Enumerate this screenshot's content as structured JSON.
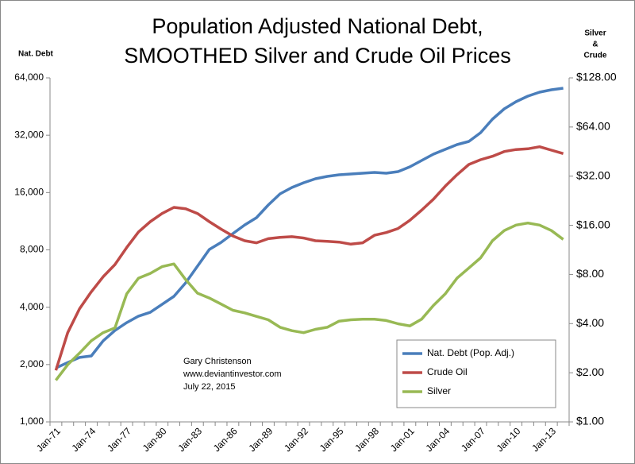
{
  "chart_data": {
    "type": "line",
    "title": [
      "Population Adjusted National Debt,",
      "SMOOTHED Silver and Crude Oil Prices"
    ],
    "ylabel": "Nat. Debt",
    "y2label": [
      "Silver",
      "&",
      "Crude"
    ],
    "annotation": [
      "Gary Christenson",
      "www.deviantinvestor.com",
      "July 22, 2015"
    ],
    "categories": [
      "Jan-71",
      null,
      null,
      "Jan-74",
      null,
      null,
      "Jan-77",
      null,
      null,
      "Jan-80",
      null,
      null,
      "Jan-83",
      null,
      null,
      "Jan-86",
      null,
      null,
      "Jan-89",
      null,
      null,
      "Jan-92",
      null,
      null,
      "Jan-95",
      null,
      null,
      "Jan-98",
      null,
      null,
      "Jan-01",
      null,
      null,
      "Jan-04",
      null,
      null,
      "Jan-07",
      null,
      null,
      "Jan-10",
      null,
      null,
      "Jan-13",
      null
    ],
    "series": [
      {
        "name": "Nat. Debt (Pop. Adj.)",
        "color": "#4a7ebb",
        "axis": "y",
        "values": [
          1920,
          2050,
          2180,
          2220,
          2660,
          3020,
          3320,
          3590,
          3760,
          4140,
          4560,
          5370,
          6570,
          8040,
          8760,
          9740,
          10820,
          11800,
          13760,
          15750,
          17000,
          18010,
          18900,
          19450,
          19820,
          20020,
          20210,
          20410,
          20210,
          20600,
          21830,
          23570,
          25450,
          26960,
          28560,
          29670,
          32990,
          38830,
          43990,
          47970,
          51300,
          53820,
          55410,
          56490
        ]
      },
      {
        "name": "Crude Oil",
        "color": "#be4b48",
        "axis": "y2",
        "values": [
          2.07,
          3.52,
          4.93,
          6.26,
          7.74,
          9.2,
          11.69,
          14.58,
          16.84,
          18.9,
          20.6,
          20.21,
          18.9,
          16.84,
          15.15,
          13.76,
          12.87,
          12.5,
          13.25,
          13.5,
          13.63,
          13.37,
          12.87,
          12.75,
          12.62,
          12.27,
          12.5,
          13.9,
          14.44,
          15.3,
          17.17,
          19.82,
          23.12,
          27.75,
          32.67,
          37.73,
          40.36,
          42.34,
          45.29,
          46.6,
          47.05,
          48.44,
          46.17,
          43.99
        ]
      },
      {
        "name": "Silver",
        "color": "#98b954",
        "axis": "y2",
        "values": [
          1.8,
          2.24,
          2.64,
          3.14,
          3.52,
          3.76,
          6.08,
          7.59,
          8.12,
          8.93,
          9.28,
          7.44,
          6.14,
          5.74,
          5.27,
          4.83,
          4.65,
          4.43,
          4.22,
          3.8,
          3.62,
          3.52,
          3.69,
          3.8,
          4.14,
          4.22,
          4.26,
          4.26,
          4.18,
          3.99,
          3.87,
          4.26,
          5.17,
          6.08,
          7.59,
          8.76,
          10.12,
          12.87,
          14.86,
          16.05,
          16.52,
          16.05,
          14.86,
          13.12
        ]
      }
    ],
    "ylim": [
      1000,
      64000
    ],
    "yticks": [
      {
        "value": 1000,
        "label": "1,000"
      },
      {
        "value": 2000,
        "label": "2,000"
      },
      {
        "value": 4000,
        "label": "4,000"
      },
      {
        "value": 8000,
        "label": "8,000"
      },
      {
        "value": 16000,
        "label": "16,000"
      },
      {
        "value": 32000,
        "label": "32,000"
      },
      {
        "value": 64000,
        "label": "64,000"
      }
    ],
    "y2lim": [
      1,
      128
    ],
    "y2ticks": [
      {
        "value": 1,
        "label": "$1.00"
      },
      {
        "value": 2,
        "label": "$2.00"
      },
      {
        "value": 4,
        "label": "$4.00"
      },
      {
        "value": 8,
        "label": "$8.00"
      },
      {
        "value": 16,
        "label": "$16.00"
      },
      {
        "value": 32,
        "label": "$32.00"
      },
      {
        "value": 64,
        "label": "$64.00"
      },
      {
        "value": 128,
        "label": "$128.00"
      }
    ],
    "log_scale": true,
    "grid": false,
    "legend": "lower right"
  }
}
